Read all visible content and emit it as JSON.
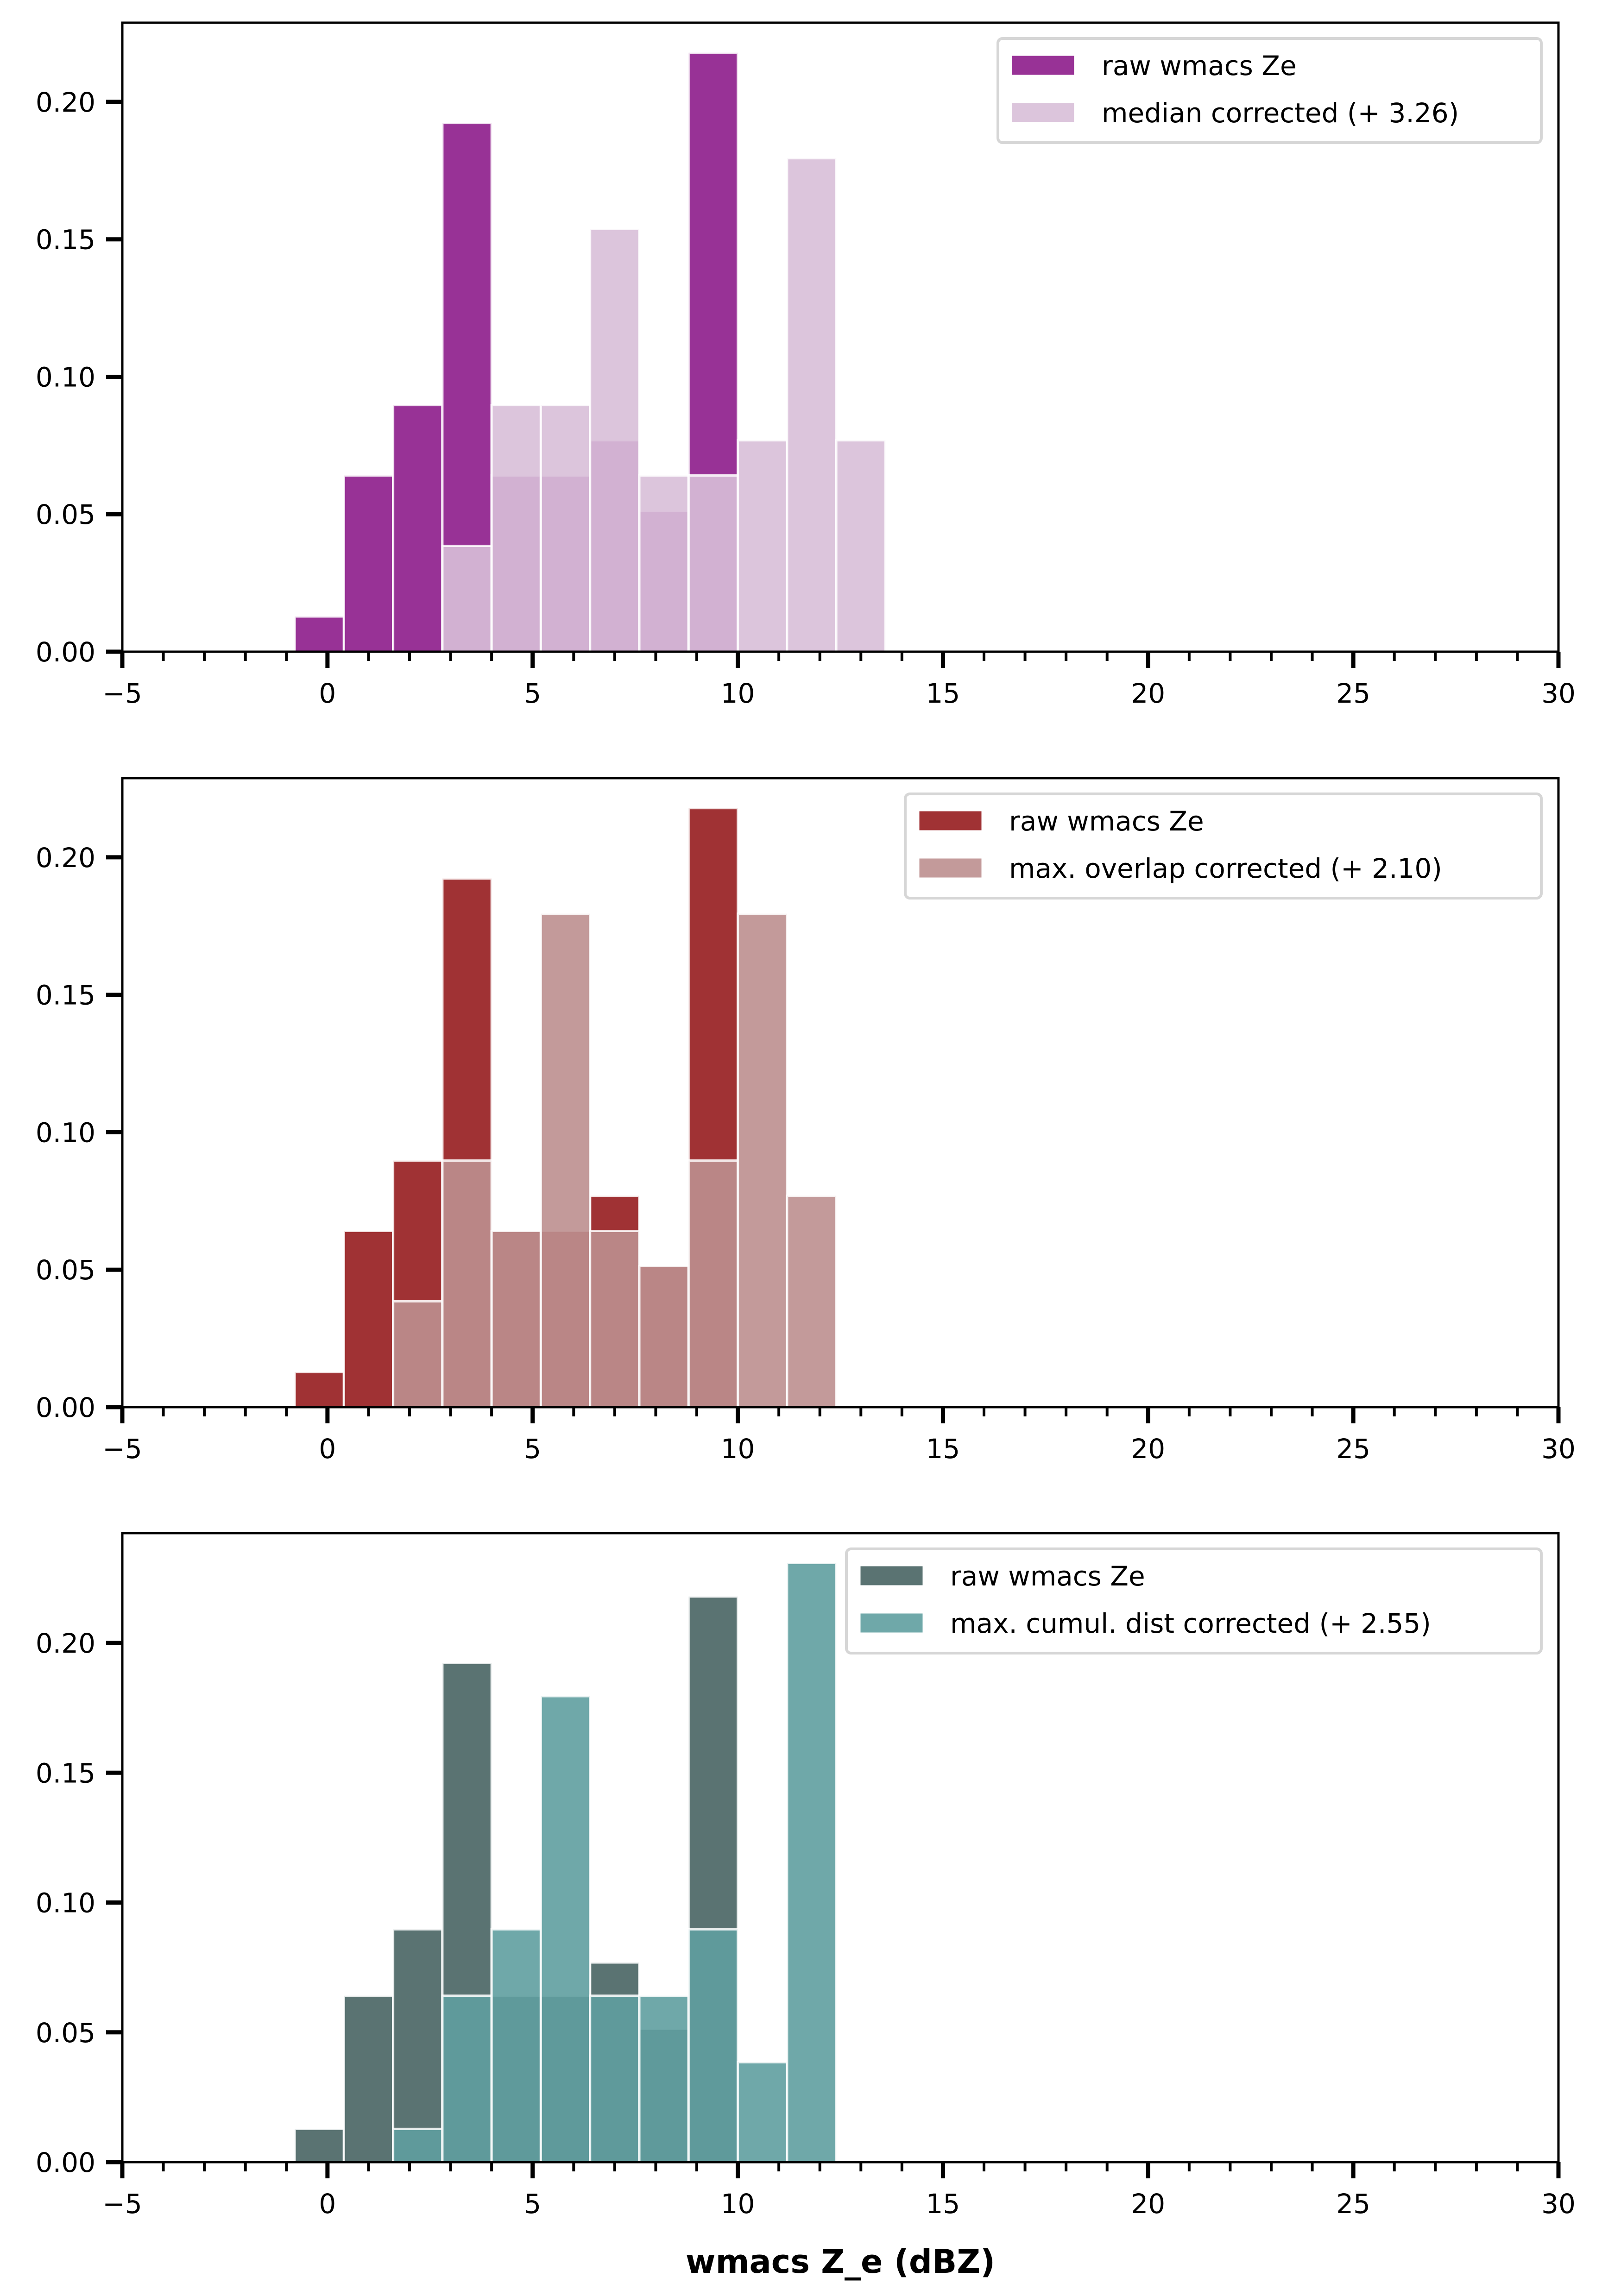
{
  "figure": {
    "xlabel": "wmacs Z_e (dBZ)"
  },
  "chart_data": [
    {
      "type": "bar",
      "subtype": "overlaid-histogram",
      "title": "",
      "xlabel": "",
      "ylabel": "",
      "xlim": [
        -5,
        30
      ],
      "ylim": [
        0,
        0.2288
      ],
      "xticks": [
        -5,
        0,
        5,
        10,
        15,
        20,
        25,
        30
      ],
      "xtick_labels": [
        "−5",
        "0",
        "5",
        "10",
        "15",
        "20",
        "25",
        "30"
      ],
      "xminor_step": 1,
      "yticks": [
        0,
        0.05,
        0.1,
        0.15,
        0.2
      ],
      "ytick_labels": [
        "0.00",
        "0.05",
        "0.10",
        "0.15",
        "0.20"
      ],
      "grid": false,
      "legend_position": "top-right",
      "bin_edges": [
        -0.8,
        0.4,
        1.6,
        2.8,
        4.0,
        5.2,
        6.4,
        7.6,
        8.8,
        10.0,
        11.2,
        12.4,
        13.6
      ],
      "series": [
        {
          "name": "raw wmacs Ze",
          "color": "#983296",
          "opacity": 1,
          "values": [
            0.0128,
            0.0641,
            0.0897,
            0.1923,
            0.0641,
            0.0641,
            0.0769,
            0.0513,
            0.2179,
            0,
            0,
            0
          ]
        },
        {
          "name": "median corrected (+ 3.26)",
          "color": "#d8bfd8",
          "opacity": 0.9,
          "values": [
            0,
            0,
            0,
            0.0385,
            0.0897,
            0.0897,
            0.1538,
            0.0641,
            0.0641,
            0.0769,
            0.1795,
            0.0769
          ]
        }
      ]
    },
    {
      "type": "bar",
      "subtype": "overlaid-histogram",
      "title": "",
      "xlabel": "",
      "ylabel": "",
      "xlim": [
        -5,
        30
      ],
      "ylim": [
        0,
        0.2288
      ],
      "xticks": [
        -5,
        0,
        5,
        10,
        15,
        20,
        25,
        30
      ],
      "xtick_labels": [
        "−5",
        "0",
        "5",
        "10",
        "15",
        "20",
        "25",
        "30"
      ],
      "xminor_step": 1,
      "yticks": [
        0,
        0.05,
        0.1,
        0.15,
        0.2
      ],
      "ytick_labels": [
        "0.00",
        "0.05",
        "0.10",
        "0.15",
        "0.20"
      ],
      "grid": false,
      "legend_position": "top-right",
      "bin_edges": [
        -0.8,
        0.4,
        1.6,
        2.8,
        4.0,
        5.2,
        6.4,
        7.6,
        8.8,
        10.0,
        11.2,
        12.4,
        13.6
      ],
      "series": [
        {
          "name": "raw wmacs Ze",
          "color": "#a03234",
          "opacity": 1,
          "values": [
            0.0128,
            0.0641,
            0.0897,
            0.1923,
            0.0641,
            0.0641,
            0.0769,
            0.0513,
            0.2179,
            0,
            0,
            0
          ]
        },
        {
          "name": "max. overlap corrected (+ 2.10)",
          "color": "#bc8f8f",
          "opacity": 0.9,
          "values": [
            0,
            0,
            0.0385,
            0.0897,
            0.0641,
            0.1795,
            0.0641,
            0.0513,
            0.0897,
            0.1795,
            0.0769,
            0
          ]
        }
      ]
    },
    {
      "type": "bar",
      "subtype": "overlaid-histogram",
      "title": "",
      "xlabel": "wmacs Z_e (dBZ)",
      "ylabel": "",
      "xlim": [
        -5,
        30
      ],
      "ylim": [
        0,
        0.2423
      ],
      "xticks": [
        -5,
        0,
        5,
        10,
        15,
        20,
        25,
        30
      ],
      "xtick_labels": [
        "−5",
        "0",
        "5",
        "10",
        "15",
        "20",
        "25",
        "30"
      ],
      "xminor_step": 1,
      "yticks": [
        0,
        0.05,
        0.1,
        0.15,
        0.2
      ],
      "ytick_labels": [
        "0.00",
        "0.05",
        "0.10",
        "0.15",
        "0.20"
      ],
      "grid": false,
      "legend_position": "top-right",
      "bin_edges": [
        -0.8,
        0.4,
        1.6,
        2.8,
        4.0,
        5.2,
        6.4,
        7.6,
        8.8,
        10.0,
        11.2,
        12.4,
        13.6
      ],
      "series": [
        {
          "name": "raw wmacs Ze",
          "color": "#5a7372",
          "opacity": 1,
          "values": [
            0.0128,
            0.0641,
            0.0897,
            0.1923,
            0.0641,
            0.0641,
            0.0769,
            0.0513,
            0.2179,
            0,
            0,
            0
          ]
        },
        {
          "name": "max. cumul. dist corrected (+ 2.55)",
          "color": "#5f9ea0",
          "opacity": 0.9,
          "values": [
            0,
            0,
            0.0128,
            0.0641,
            0.0897,
            0.1795,
            0.0641,
            0.0641,
            0.0897,
            0.0385,
            0.2308,
            0
          ]
        }
      ]
    }
  ]
}
